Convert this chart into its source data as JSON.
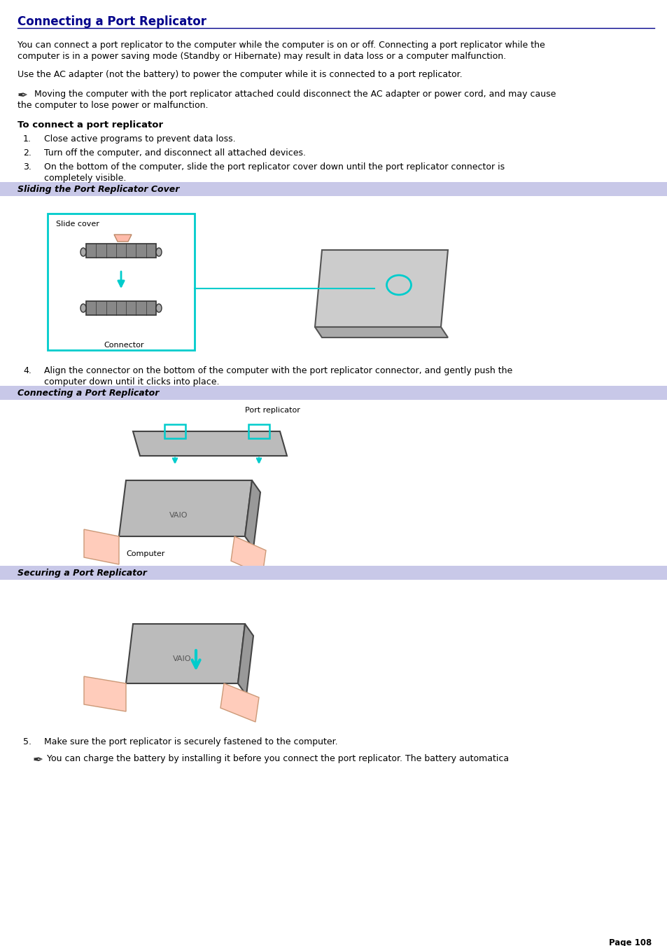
{
  "title": "Connecting a Port Replicator",
  "title_color": "#00008B",
  "title_fontsize": 12,
  "bg_color": "#FFFFFF",
  "body_fontsize": 9.0,
  "body_color": "#000000",
  "section_bg_color": "#C8C8E8",
  "section_text_color": "#000000",
  "section_fontsize": 9.0,
  "page_number": "Page 108",
  "paragraph1_line1": "You can connect a port replicator to the computer while the computer is on or off. Connecting a port replicator while the",
  "paragraph1_line2": "computer is in a power saving mode (Standby or Hibernate) may result in data loss or a computer malfunction.",
  "paragraph2": "Use the AC adapter (not the battery) to power the computer while it is connected to a port replicator.",
  "note1_line1": " Moving the computer with the port replicator attached could disconnect the AC adapter or power cord, and may cause",
  "note1_line2": "the computer to lose power or malfunction.",
  "bold_heading": "To connect a port replicator",
  "step1": "Close active programs to prevent data loss.",
  "step2": "Turn off the computer, and disconnect all attached devices.",
  "step3_line1": "On the bottom of the computer, slide the port replicator cover down until the port replicator connector is",
  "step3_line2": "completely visible.",
  "section1_label": "Sliding the Port Replicator Cover",
  "slide_cover_label": "Slide cover",
  "connector_label": "Connector",
  "step4_line1": "Align the connector on the bottom of the computer with the port replicator connector, and gently push the",
  "step4_line2": "computer down until it clicks into place.",
  "section2_label": "Connecting a Port Replicator",
  "port_replicator_label": "Port replicator",
  "computer_label": "Computer",
  "section3_label": "Securing a Port Replicator",
  "step5": "Make sure the port replicator is securely fastened to the computer.",
  "note2": "You can charge the battery by installing it before you connect the port replicator. The battery automatica",
  "line_color": "#00008B",
  "cyan_color": "#00CCCC",
  "gray_color": "#AAAAAA",
  "img_bg": "#FFFFFF"
}
